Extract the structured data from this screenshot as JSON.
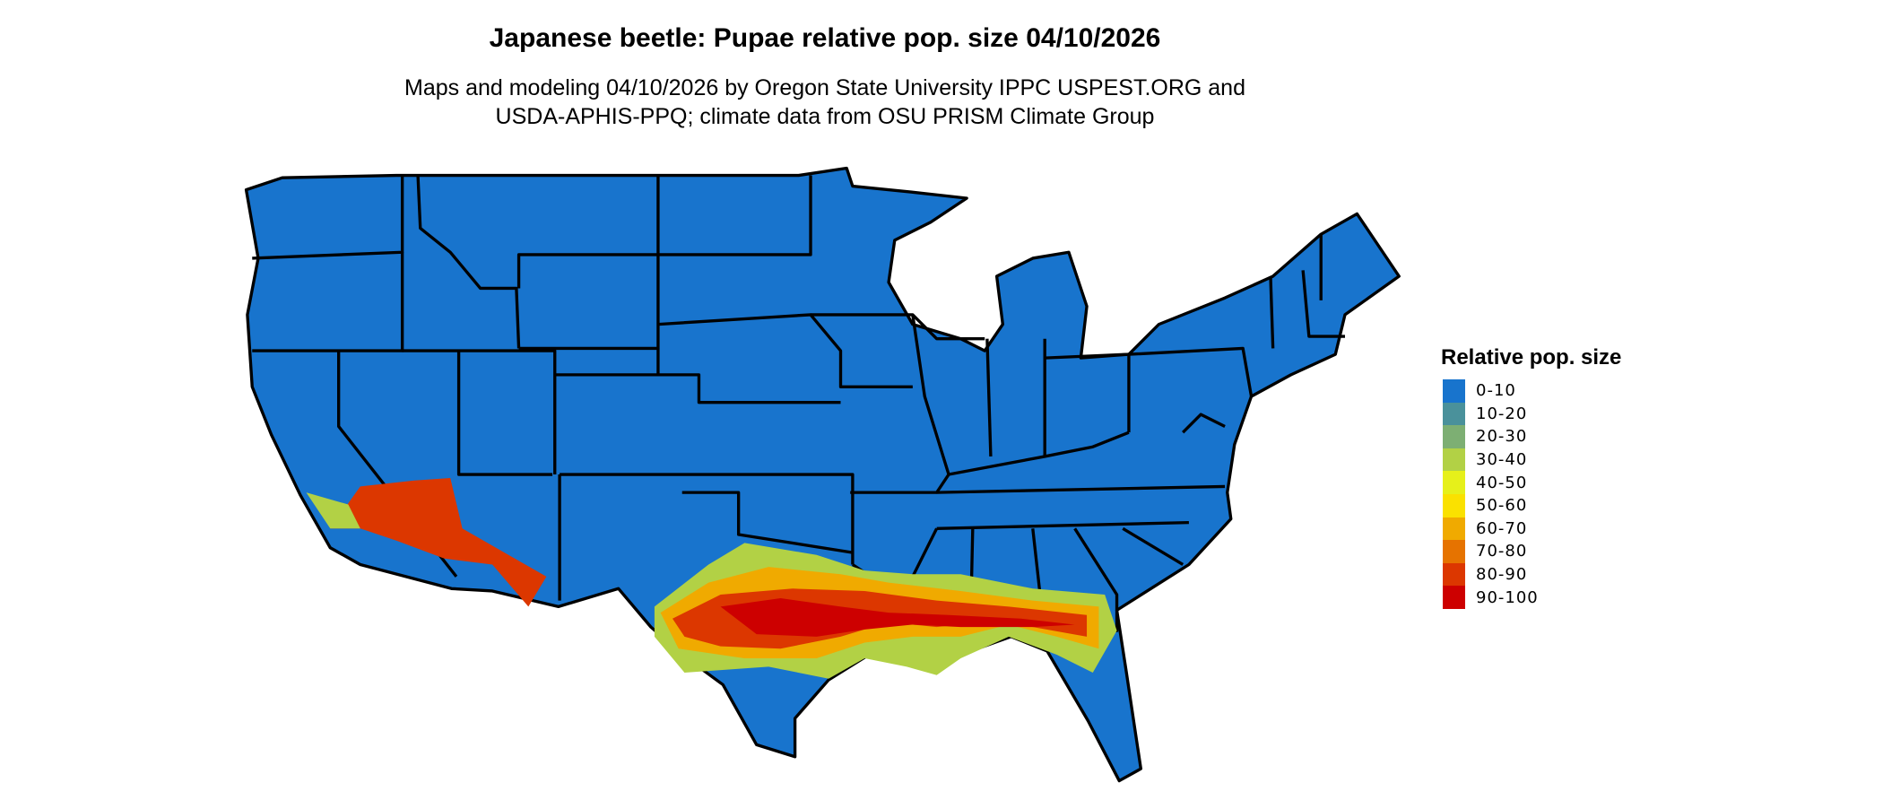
{
  "chart_data": {
    "type": "heatmap",
    "title": "Japanese beetle: Pupae relative pop. size 04/10/2026",
    "subtitle_lines": [
      "Maps and modeling 04/10/2026 by Oregon State University IPPC USPEST.ORG and",
      "USDA-APHIS-PPQ; climate data from OSU PRISM Climate Group"
    ],
    "region": "Contiguous United States (state boundaries)",
    "legend": {
      "title": "Relative pop. size",
      "placement": "right",
      "entries": [
        {
          "label": "0-10",
          "color": "#1874CD"
        },
        {
          "label": "10-20",
          "color": "#4A919B"
        },
        {
          "label": "20-30",
          "color": "#7DAF73"
        },
        {
          "label": "30-40",
          "color": "#B2D145"
        },
        {
          "label": "40-50",
          "color": "#E6F01A"
        },
        {
          "label": "50-60",
          "color": "#FAE100"
        },
        {
          "label": "60-70",
          "color": "#F0AA00"
        },
        {
          "label": "70-80",
          "color": "#E67300"
        },
        {
          "label": "80-90",
          "color": "#DC3700"
        },
        {
          "label": "90-100",
          "color": "#CD0000"
        }
      ]
    }
  }
}
